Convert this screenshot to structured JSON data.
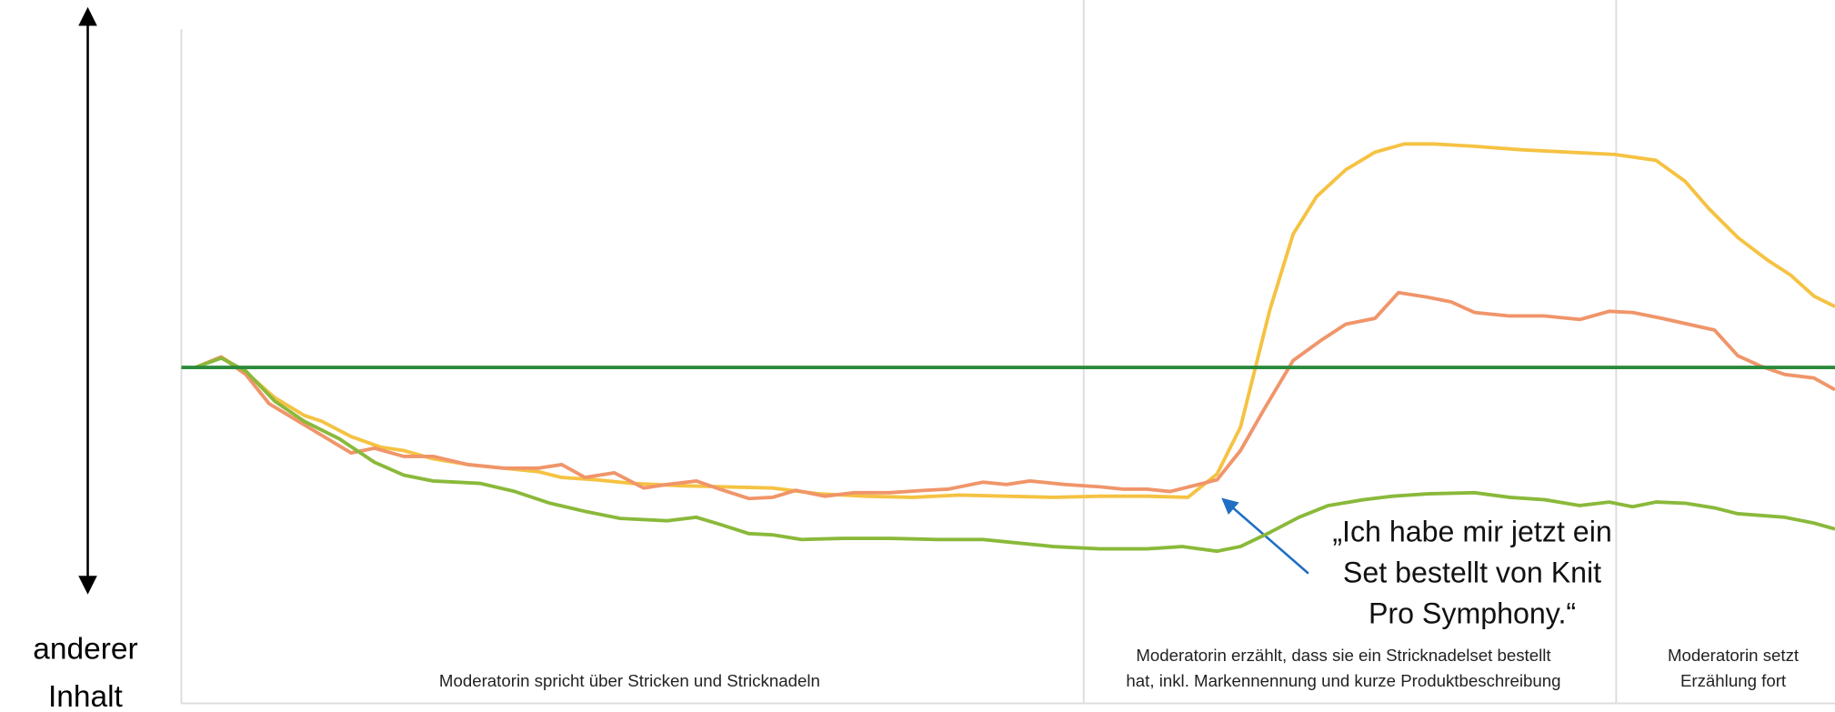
{
  "chart_data": {
    "type": "line",
    "left_label": [
      "anderer",
      "Inhalt"
    ],
    "sections": [
      [
        "Moderatorin spricht über Stricken und Stricknadeln"
      ],
      [
        "Moderatorin erzählt, dass sie ein Stricknadelset bestellt",
        "hat, inkl. Markennennung und kurze Produktbeschreibung"
      ],
      [
        "Moderatorin setzt",
        "Erzählung fort"
      ]
    ],
    "annotation": [
      "„Ich habe mir jetzt ein",
      "Set bestellt von Knit",
      "Pro Symphony.“"
    ],
    "xlim": [
      0,
      1413
    ],
    "ylim": [
      0,
      575
    ],
    "reference_line": {
      "value": 286,
      "color": "#2a8a3a"
    },
    "series": [
      {
        "color": "#f5c242",
        "x": [
          12,
          34,
          55,
          80,
          105,
          120,
          145,
          170,
          190,
          215,
          245,
          275,
          305,
          325,
          355,
          385,
          425,
          465,
          505,
          545,
          585,
          625,
          665,
          705,
          745,
          785,
          825,
          860,
          885,
          905,
          930,
          950,
          970,
          995,
          1020,
          1045,
          1070,
          1105,
          1145,
          1185,
          1225,
          1260,
          1285,
          1305,
          1330,
          1355,
          1375,
          1395,
          1413
        ],
        "values": [
          286,
          295,
          282,
          260,
          245,
          240,
          227,
          218,
          215,
          208,
          203,
          200,
          197,
          192,
          190,
          187,
          185,
          184,
          183,
          178,
          176,
          175,
          177,
          176,
          175,
          176,
          176,
          175,
          195,
          235,
          335,
          400,
          432,
          455,
          470,
          477,
          477,
          475,
          472,
          470,
          468,
          463,
          445,
          422,
          397,
          378,
          365,
          347,
          338
        ]
      },
      {
        "color": "#f0956a",
        "x": [
          12,
          34,
          55,
          75,
          100,
          125,
          145,
          165,
          190,
          215,
          245,
          275,
          305,
          325,
          345,
          370,
          395,
          415,
          440,
          460,
          485,
          505,
          525,
          550,
          575,
          605,
          635,
          655,
          685,
          705,
          725,
          755,
          785,
          805,
          825,
          845,
          865,
          885,
          905,
          925,
          950,
          975,
          995,
          1020,
          1040,
          1065,
          1085,
          1105,
          1135,
          1165,
          1195,
          1220,
          1240,
          1265,
          1310,
          1330,
          1350,
          1370,
          1395,
          1413
        ],
        "values": [
          286,
          295,
          280,
          255,
          240,
          225,
          213,
          217,
          210,
          210,
          203,
          200,
          200,
          203,
          192,
          196,
          183,
          186,
          189,
          182,
          174,
          175,
          181,
          176,
          179,
          179,
          181,
          182,
          188,
          186,
          189,
          186,
          184,
          182,
          182,
          180,
          185,
          190,
          215,
          250,
          292,
          310,
          323,
          328,
          350,
          346,
          342,
          333,
          330,
          330,
          327,
          334,
          333,
          328,
          318,
          296,
          287,
          280,
          277,
          267
        ]
      },
      {
        "color": "#8ab93a",
        "x": [
          12,
          34,
          55,
          80,
          105,
          135,
          165,
          190,
          215,
          255,
          285,
          315,
          345,
          375,
          415,
          440,
          460,
          485,
          505,
          530,
          565,
          605,
          645,
          685,
          715,
          745,
          785,
          825,
          855,
          885,
          905,
          930,
          955,
          980,
          1010,
          1035,
          1065,
          1105,
          1135,
          1165,
          1195,
          1220,
          1240,
          1260,
          1285,
          1310,
          1330,
          1370,
          1395,
          1413
        ],
        "values": [
          286,
          294,
          283,
          257,
          240,
          225,
          205,
          194,
          189,
          187,
          180,
          170,
          163,
          157,
          155,
          158,
          152,
          144,
          143,
          139,
          140,
          140,
          139,
          139,
          136,
          133,
          131,
          131,
          133,
          129,
          133,
          145,
          158,
          168,
          173,
          176,
          178,
          179,
          175,
          173,
          168,
          171,
          167,
          171,
          170,
          166,
          161,
          158,
          153,
          148
        ]
      }
    ]
  }
}
